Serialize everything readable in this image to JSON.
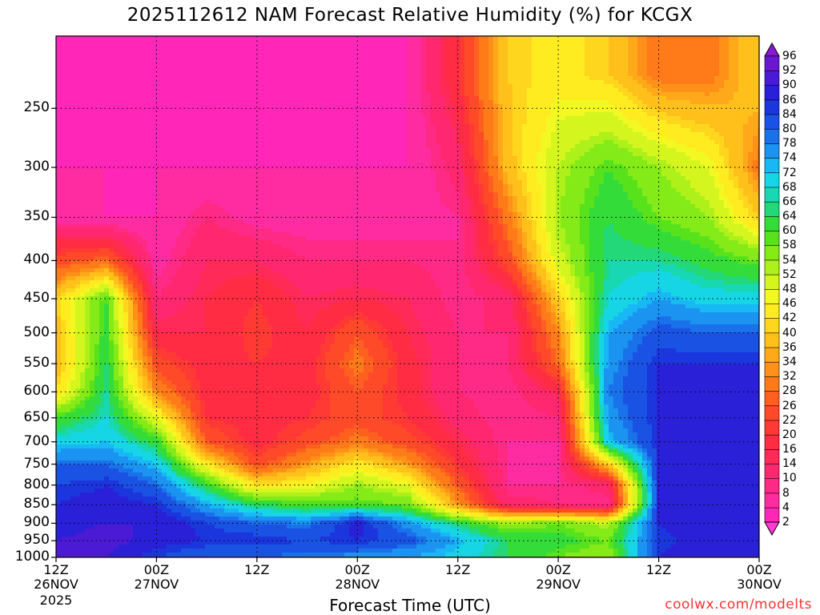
{
  "chart_data": {
    "type": "heatmap",
    "title": "2025112612 NAM Forecast Relative Humidity (%) for KCGX",
    "xlabel": "Forecast Time (UTC)",
    "ylabel": "",
    "x_ticks": [
      {
        "hour": 0,
        "line1": "12Z",
        "line2": "26NOV"
      },
      {
        "hour": 12,
        "line1": "00Z",
        "line2": "27NOV"
      },
      {
        "hour": 24,
        "line1": "12Z",
        "line2": ""
      },
      {
        "hour": 36,
        "line1": "00Z",
        "line2": "28NOV"
      },
      {
        "hour": 48,
        "line1": "12Z",
        "line2": ""
      },
      {
        "hour": 60,
        "line1": "00Z",
        "line2": "29NOV"
      },
      {
        "hour": 72,
        "line1": "12Z",
        "line2": ""
      },
      {
        "hour": 84,
        "line1": "00Z",
        "line2": "30NOV"
      }
    ],
    "year_label": "2025",
    "y_ticks": [
      250,
      300,
      350,
      400,
      450,
      500,
      550,
      600,
      650,
      700,
      750,
      800,
      850,
      900,
      950,
      1000
    ],
    "xlim": [
      0,
      84
    ],
    "ylim": [
      1000,
      200
    ],
    "grid": true,
    "colorbar": {
      "levels": [
        2,
        4,
        8,
        10,
        14,
        16,
        20,
        22,
        26,
        28,
        32,
        34,
        36,
        40,
        42,
        46,
        48,
        52,
        54,
        58,
        60,
        64,
        66,
        68,
        72,
        74,
        78,
        80,
        84,
        86,
        90,
        92,
        96
      ],
      "colors": [
        "#ff3ad8",
        "#ff26b8",
        "#ff2ba0",
        "#ff2a86",
        "#ff2870",
        "#ff2a58",
        "#ff2c44",
        "#ff3a34",
        "#ff4a2a",
        "#ff6020",
        "#ff7a18",
        "#ff9018",
        "#ffa81a",
        "#ffc01c",
        "#ffd61e",
        "#ffec20",
        "#f2f822",
        "#d4f61e",
        "#aef01a",
        "#84ea18",
        "#58e21c",
        "#34dc3a",
        "#22d878",
        "#18d8b4",
        "#16d6e6",
        "#18b8f4",
        "#1a94f0",
        "#1a72ea",
        "#1a52e4",
        "#1a36dc",
        "#2a20d8",
        "#4a1ad4",
        "#6a18d0",
        "#8a18d2"
      ]
    },
    "ground": {
      "color": "#9e4b2a",
      "pressure_top": 998
    },
    "rh_profiles": [
      {
        "hour": 0,
        "rh": {
          "225": 4,
          "300": 4,
          "350": 6,
          "400": 24,
          "450": 40,
          "500": 38,
          "550": 36,
          "600": 42,
          "650": 60,
          "700": 70,
          "750": 80,
          "800": 84,
          "850": 86,
          "900": 88,
          "950": 90,
          "1000": 90
        }
      },
      {
        "hour": 6,
        "rh": {
          "225": 4,
          "300": 4,
          "350": 4,
          "400": 28,
          "450": 60,
          "500": 62,
          "550": 64,
          "600": 66,
          "650": 68,
          "700": 72,
          "750": 80,
          "800": 86,
          "850": 88,
          "900": 90,
          "950": 92,
          "1000": 90
        }
      },
      {
        "hour": 12,
        "rh": {
          "225": 4,
          "300": 4,
          "350": 4,
          "400": 6,
          "450": 10,
          "500": 16,
          "550": 24,
          "600": 32,
          "650": 48,
          "700": 62,
          "750": 72,
          "800": 80,
          "850": 86,
          "900": 90,
          "950": 88,
          "1000": 84
        }
      },
      {
        "hour": 18,
        "rh": {
          "225": 4,
          "300": 4,
          "350": 10,
          "400": 14,
          "450": 16,
          "500": 16,
          "550": 18,
          "600": 18,
          "650": 20,
          "700": 26,
          "750": 44,
          "800": 62,
          "850": 74,
          "900": 84,
          "950": 86,
          "1000": 80
        }
      },
      {
        "hour": 24,
        "rh": {
          "225": 4,
          "300": 4,
          "350": 6,
          "400": 14,
          "450": 20,
          "500": 22,
          "550": 20,
          "600": 18,
          "650": 18,
          "700": 18,
          "750": 24,
          "800": 42,
          "850": 64,
          "900": 80,
          "950": 86,
          "1000": 80
        }
      },
      {
        "hour": 30,
        "rh": {
          "225": 4,
          "300": 4,
          "350": 6,
          "400": 10,
          "450": 14,
          "500": 16,
          "550": 18,
          "600": 18,
          "650": 20,
          "700": 24,
          "750": 34,
          "800": 46,
          "850": 60,
          "900": 78,
          "950": 84,
          "1000": 78
        }
      },
      {
        "hour": 36,
        "rh": {
          "225": 4,
          "300": 4,
          "350": 6,
          "400": 10,
          "450": 16,
          "500": 26,
          "550": 30,
          "600": 26,
          "650": 24,
          "700": 30,
          "750": 44,
          "800": 54,
          "850": 60,
          "900": 88,
          "950": 86,
          "1000": 76
        }
      },
      {
        "hour": 42,
        "rh": {
          "225": 4,
          "300": 4,
          "350": 6,
          "400": 10,
          "450": 14,
          "500": 16,
          "550": 18,
          "600": 18,
          "650": 20,
          "700": 24,
          "750": 34,
          "800": 48,
          "850": 58,
          "900": 76,
          "950": 82,
          "1000": 74
        }
      },
      {
        "hour": 48,
        "rh": {
          "225": 20,
          "300": 12,
          "350": 8,
          "400": 8,
          "450": 8,
          "500": 10,
          "550": 10,
          "600": 10,
          "650": 12,
          "700": 16,
          "750": 20,
          "800": 26,
          "850": 34,
          "900": 64,
          "950": 74,
          "1000": 70
        }
      },
      {
        "hour": 54,
        "rh": {
          "225": 40,
          "300": 38,
          "350": 30,
          "400": 24,
          "450": 12,
          "500": 10,
          "550": 10,
          "600": 8,
          "650": 8,
          "700": 8,
          "750": 8,
          "800": 8,
          "850": 12,
          "900": 54,
          "950": 64,
          "1000": 64
        }
      },
      {
        "hour": 60,
        "rh": {
          "225": 44,
          "300": 52,
          "350": 54,
          "400": 50,
          "450": 40,
          "500": 32,
          "550": 28,
          "600": 16,
          "650": 10,
          "700": 8,
          "750": 8,
          "800": 8,
          "850": 10,
          "900": 58,
          "950": 62,
          "1000": 58
        }
      },
      {
        "hour": 66,
        "rh": {
          "225": 40,
          "300": 60,
          "350": 64,
          "400": 66,
          "450": 68,
          "500": 74,
          "550": 76,
          "600": 78,
          "650": 76,
          "700": 72,
          "750": 40,
          "800": 12,
          "850": 8,
          "900": 52,
          "950": 58,
          "1000": 54
        }
      },
      {
        "hour": 72,
        "rh": {
          "225": 30,
          "300": 54,
          "350": 58,
          "400": 66,
          "450": 74,
          "500": 82,
          "550": 86,
          "600": 86,
          "650": 86,
          "700": 86,
          "750": 86,
          "800": 86,
          "850": 86,
          "900": 86,
          "950": 84,
          "1000": 86
        }
      },
      {
        "hour": 78,
        "rh": {
          "225": 30,
          "300": 48,
          "350": 54,
          "400": 62,
          "450": 70,
          "500": 80,
          "550": 86,
          "600": 88,
          "650": 88,
          "700": 88,
          "750": 90,
          "800": 90,
          "850": 90,
          "900": 90,
          "950": 90,
          "1000": 90
        }
      },
      {
        "hour": 84,
        "rh": {
          "225": 40,
          "300": 30,
          "350": 40,
          "400": 58,
          "450": 70,
          "500": 80,
          "550": 86,
          "600": 88,
          "650": 88,
          "700": 90,
          "750": 90,
          "800": 90,
          "850": 90,
          "900": 90,
          "950": 90,
          "1000": 88
        }
      }
    ]
  },
  "credit": "coolwx.com/modelts"
}
